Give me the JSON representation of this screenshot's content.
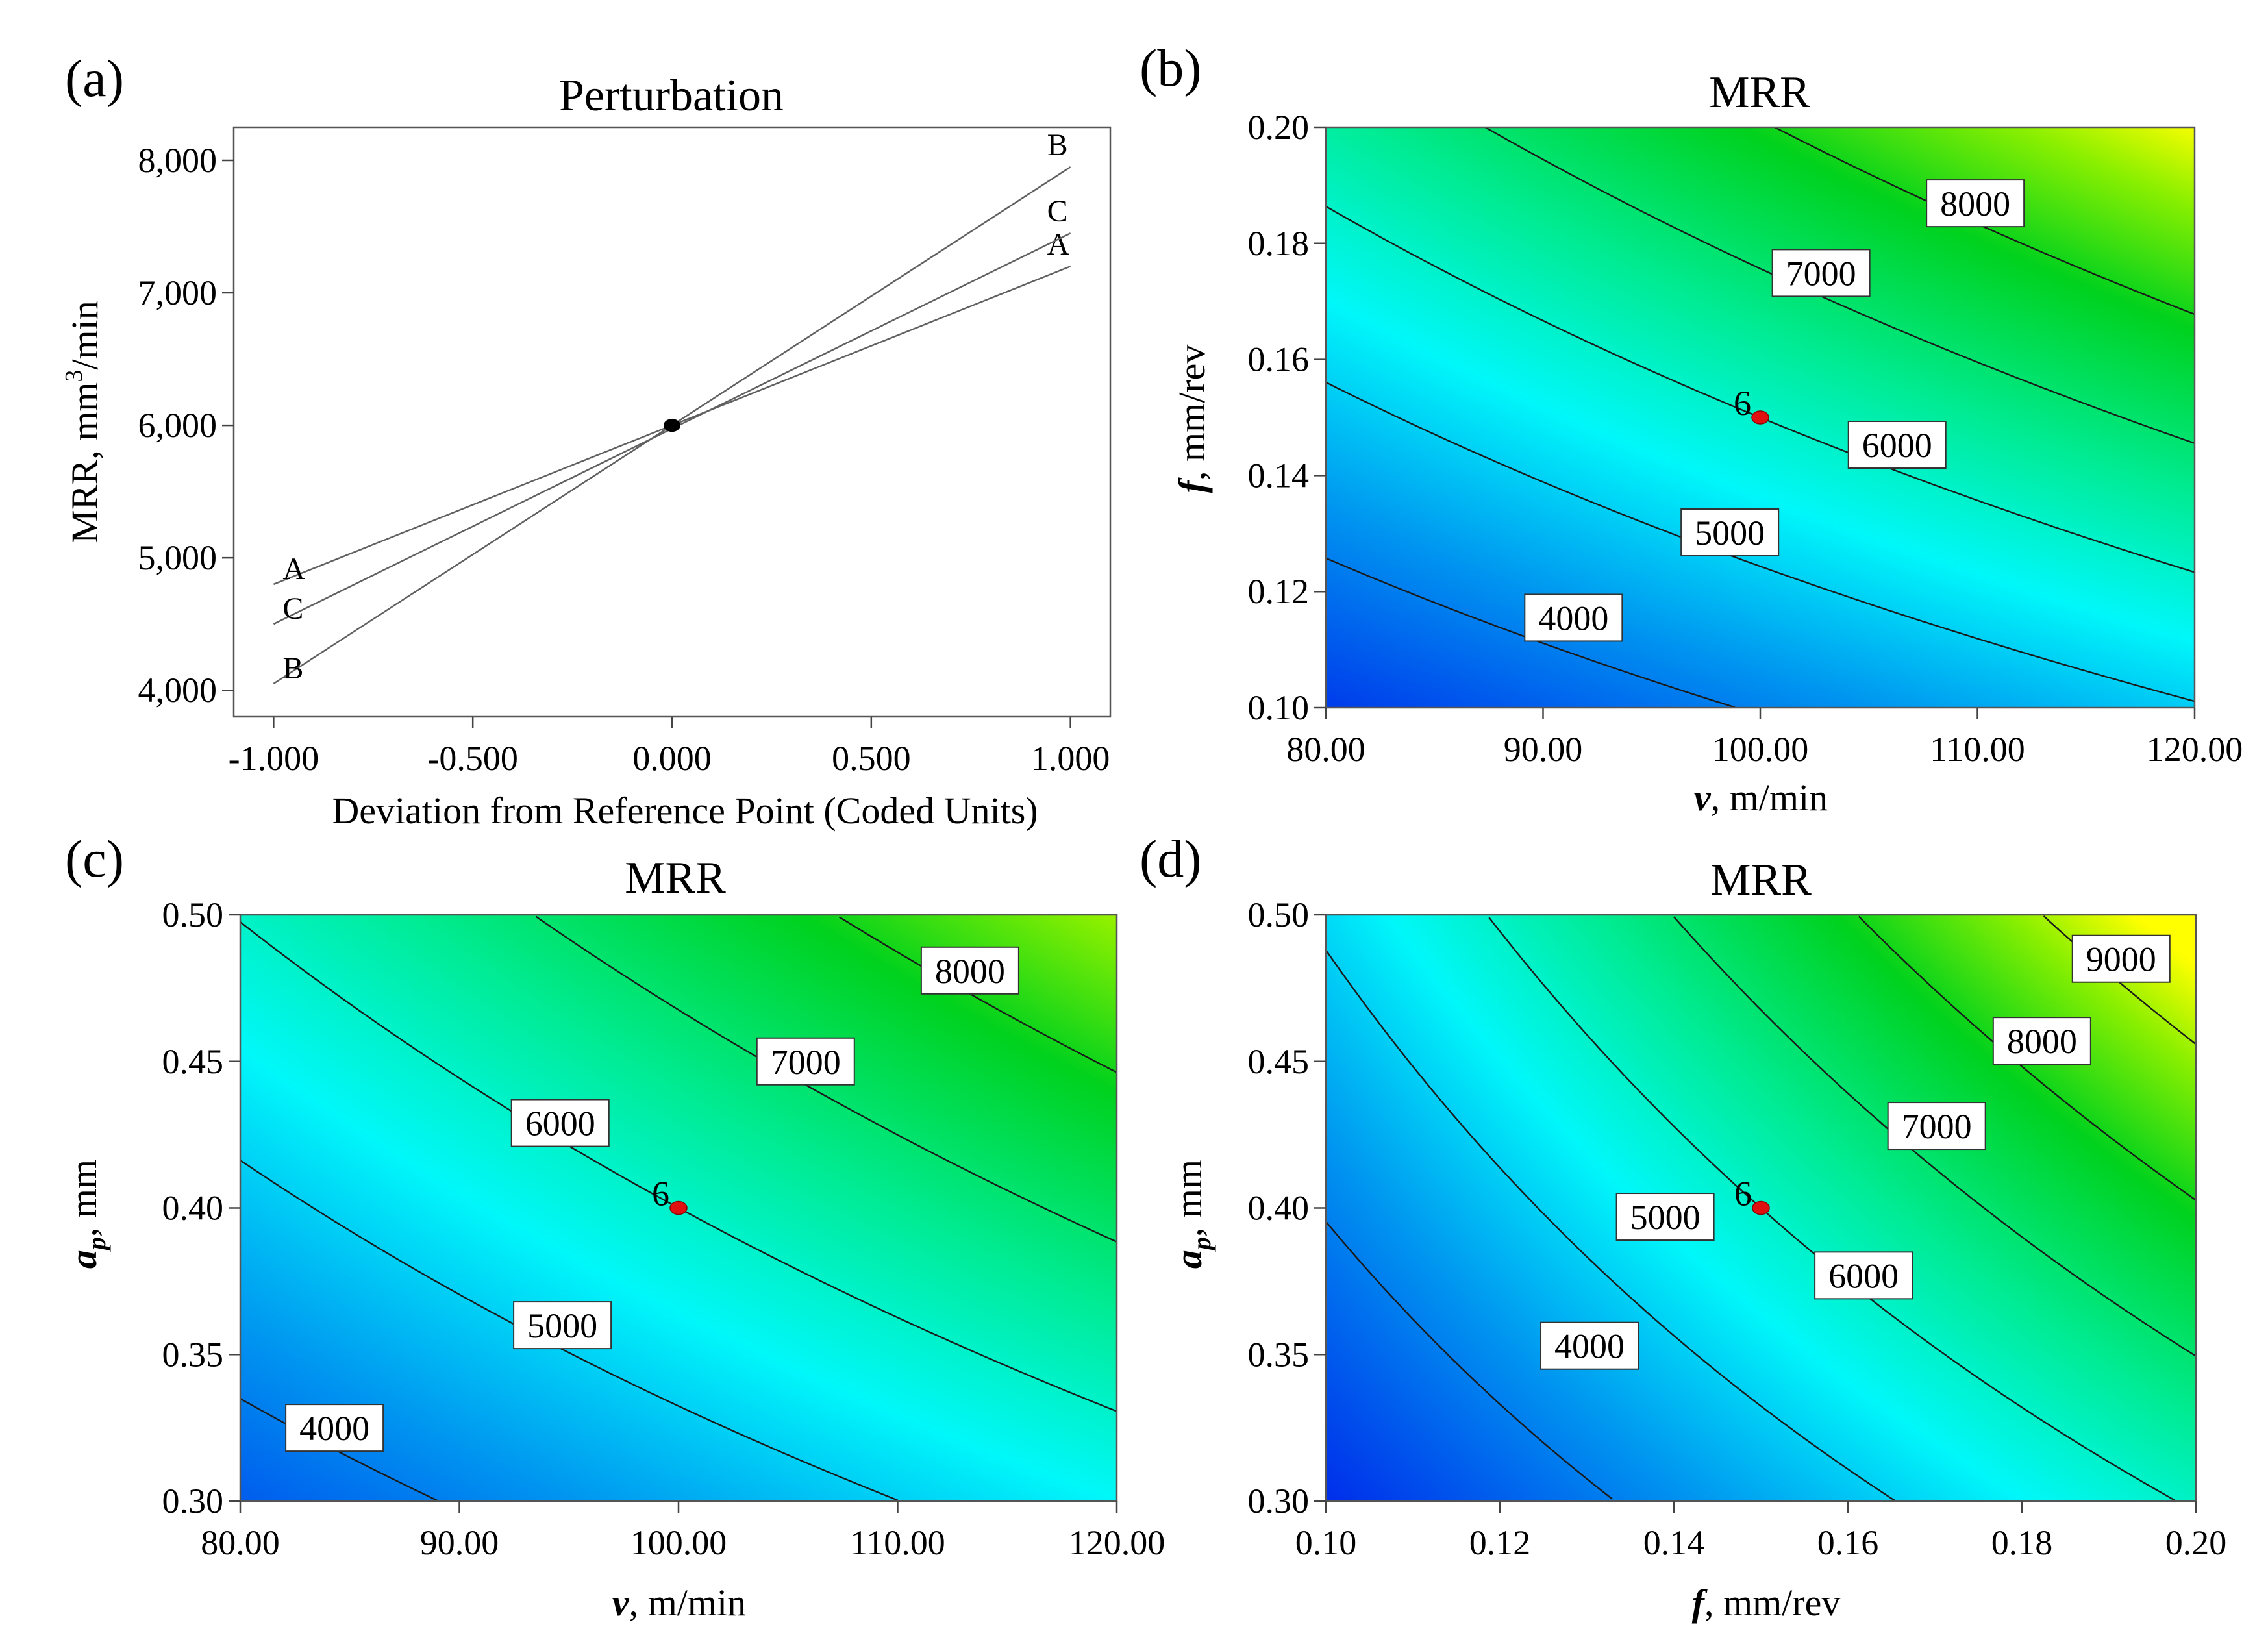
{
  "chart_data": [
    {
      "id": "a",
      "type": "line",
      "panel_label": "(a)",
      "title": "Perturbation",
      "xlabel": "Deviation from Reference Point (Coded Units)",
      "ylabel_parts": [
        "MRR, mm",
        "3",
        "/min"
      ],
      "xlim": [
        -1.1,
        1.1
      ],
      "ylim": [
        3800,
        8250
      ],
      "xticks": [
        -1.0,
        -0.5,
        0.0,
        0.5,
        1.0
      ],
      "xtick_labels": [
        "-1.000",
        "-0.500",
        "0.000",
        "0.500",
        "1.000"
      ],
      "yticks": [
        4000,
        5000,
        6000,
        7000,
        8000
      ],
      "ytick_labels": [
        "4,000",
        "5,000",
        "6,000",
        "7,000",
        "8,000"
      ],
      "reference_point": {
        "x": 0.0,
        "y": 6000
      },
      "series": [
        {
          "name": "A",
          "x": [
            -1.0,
            1.0
          ],
          "values": [
            4800,
            7200
          ]
        },
        {
          "name": "B",
          "x": [
            -1.0,
            1.0
          ],
          "values": [
            4050,
            7950
          ]
        },
        {
          "name": "C",
          "x": [
            -1.0,
            1.0
          ],
          "values": [
            4500,
            7450
          ]
        }
      ]
    },
    {
      "id": "b",
      "type": "contour",
      "panel_label": "(b)",
      "title": "MRR",
      "xlabel_symbol": "v",
      "xlabel_rest": ", m/min",
      "ylabel_symbol": "f",
      "ylabel_sub": "",
      "ylabel_rest": ", mm/rev",
      "xlim": [
        80,
        120
      ],
      "ylim": [
        0.1,
        0.2
      ],
      "xticks": [
        80,
        90,
        100,
        110,
        120
      ],
      "xtick_labels": [
        "80.00",
        "90.00",
        "100.00",
        "110.00",
        "120.00"
      ],
      "yticks": [
        0.1,
        0.12,
        0.14,
        0.16,
        0.18,
        0.2
      ],
      "ytick_labels": [
        "0.10",
        "0.12",
        "0.14",
        "0.16",
        "0.18",
        "0.20"
      ],
      "center_point": {
        "x": 100,
        "y": 0.15,
        "label": "6"
      },
      "model": {
        "center": 6000,
        "lin_x": 1200,
        "lin_y": 1950,
        "int_xy": 300
      },
      "color_range": [
        3000,
        9500
      ],
      "levels": [
        4000,
        5000,
        6000,
        7000,
        8000
      ],
      "contour_labels": [
        {
          "text": "4000",
          "x": 91.4,
          "y": 0.1155
        },
        {
          "text": "5000",
          "x": 98.6,
          "y": 0.1302
        },
        {
          "text": "6000",
          "x": 106.3,
          "y": 0.1453
        },
        {
          "text": "7000",
          "x": 102.8,
          "y": 0.1749
        },
        {
          "text": "8000",
          "x": 109.9,
          "y": 0.1869
        }
      ]
    },
    {
      "id": "c",
      "type": "contour",
      "panel_label": "(c)",
      "title": "MRR",
      "xlabel_symbol": "v",
      "xlabel_rest": ", m/min",
      "ylabel_symbol": "a",
      "ylabel_sub": "p",
      "ylabel_rest": ", mm",
      "xlim": [
        80,
        120
      ],
      "ylim": [
        0.3,
        0.5
      ],
      "xticks": [
        80,
        90,
        100,
        110,
        120
      ],
      "xtick_labels": [
        "80.00",
        "90.00",
        "100.00",
        "110.00",
        "120.00"
      ],
      "yticks": [
        0.3,
        0.35,
        0.4,
        0.45,
        0.5
      ],
      "ytick_labels": [
        "0.30",
        "0.35",
        "0.40",
        "0.45",
        "0.50"
      ],
      "center_point": {
        "x": 100,
        "y": 0.4,
        "label": "6"
      },
      "model": {
        "center": 6000,
        "lin_x": 1200,
        "lin_y": 1480,
        "int_xy": 250
      },
      "color_range": [
        3000,
        9500
      ],
      "levels": [
        4000,
        5000,
        6000,
        7000,
        8000
      ],
      "contour_labels": [
        {
          "text": "4000",
          "x": 84.3,
          "y": 0.325
        },
        {
          "text": "5000",
          "x": 94.7,
          "y": 0.36
        },
        {
          "text": "6000",
          "x": 94.6,
          "y": 0.429
        },
        {
          "text": "7000",
          "x": 105.8,
          "y": 0.45
        },
        {
          "text": "8000",
          "x": 113.3,
          "y": 0.481
        }
      ]
    },
    {
      "id": "d",
      "type": "contour",
      "panel_label": "(d)",
      "title": "MRR",
      "xlabel_symbol": "f",
      "xlabel_rest": ", mm/rev",
      "ylabel_symbol": "a",
      "ylabel_sub": "p",
      "ylabel_rest": ", mm",
      "xlim": [
        0.1,
        0.2
      ],
      "ylim": [
        0.3,
        0.5
      ],
      "xticks": [
        0.1,
        0.12,
        0.14,
        0.16,
        0.18,
        0.2
      ],
      "xtick_labels": [
        "0.10",
        "0.12",
        "0.14",
        "0.16",
        "0.18",
        "0.20"
      ],
      "yticks": [
        0.3,
        0.35,
        0.4,
        0.45,
        0.5
      ],
      "ytick_labels": [
        "0.30",
        "0.35",
        "0.40",
        "0.45",
        "0.50"
      ],
      "center_point": {
        "x": 0.15,
        "y": 0.4,
        "label": "6"
      },
      "model": {
        "center": 6000,
        "lin_x": 1950,
        "lin_y": 1480,
        "int_xy": 400
      },
      "color_range": [
        3000,
        9500
      ],
      "levels": [
        4000,
        5000,
        6000,
        7000,
        8000,
        9000
      ],
      "contour_labels": [
        {
          "text": "4000",
          "x": 0.1303,
          "y": 0.353
        },
        {
          "text": "5000",
          "x": 0.139,
          "y": 0.397
        },
        {
          "text": "6000",
          "x": 0.1618,
          "y": 0.377
        },
        {
          "text": "7000",
          "x": 0.1702,
          "y": 0.428
        },
        {
          "text": "8000",
          "x": 0.1823,
          "y": 0.457
        },
        {
          "text": "9000",
          "x": 0.1914,
          "y": 0.485
        }
      ]
    }
  ]
}
